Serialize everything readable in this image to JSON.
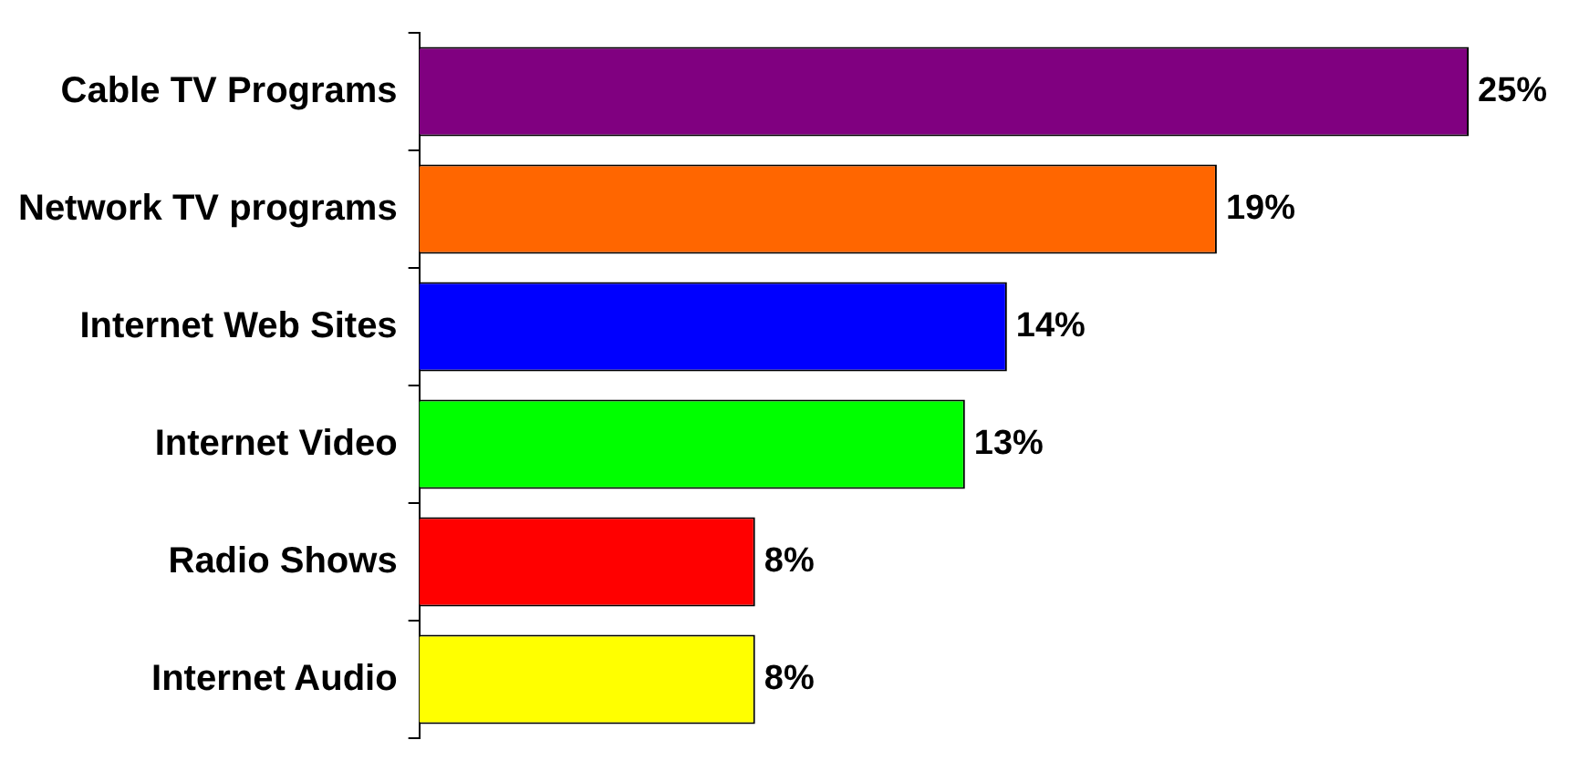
{
  "chart_data": {
    "type": "bar",
    "orientation": "horizontal",
    "categories": [
      "Cable TV Programs",
      "Network TV programs",
      "Internet Web Sites",
      "Internet Video",
      "Radio Shows",
      "Internet Audio"
    ],
    "values": [
      25,
      19,
      14,
      13,
      8,
      8
    ],
    "colors": [
      "#800080",
      "#ff6600",
      "#0000ff",
      "#00ff00",
      "#ff0000",
      "#ffff00"
    ],
    "value_labels": [
      "25%",
      "19%",
      "14%",
      "13%",
      "8%",
      "8%"
    ],
    "grid": false,
    "legend": false
  }
}
